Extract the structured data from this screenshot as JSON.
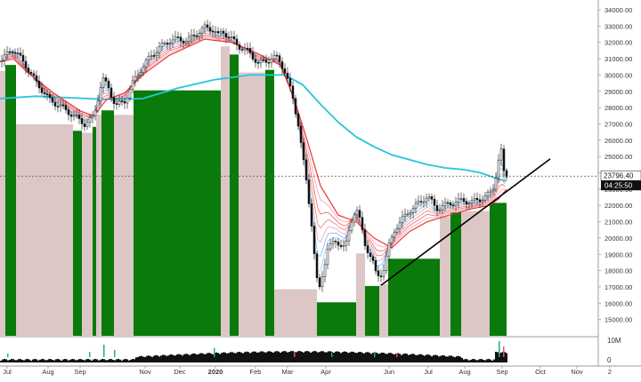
{
  "chart_data": {
    "type": "candlestick",
    "title": "",
    "xlabel": "",
    "ylabel": "",
    "ylim": [
      14000,
      34600
    ],
    "y_ticks": [
      15000,
      16000,
      17000,
      18000,
      19000,
      20000,
      21000,
      22000,
      23000,
      24000,
      25000,
      26000,
      27000,
      28000,
      29000,
      30000,
      31000,
      32000,
      33000,
      34000
    ],
    "y_tick_labels": [
      "15000.00",
      "16000.00",
      "17000.00",
      "18000.00",
      "19000.00",
      "20000.00",
      "21000.00",
      "22000.00",
      "23000.00",
      "24000.00",
      "25000.00",
      "26000.00",
      "27000.00",
      "28000.00",
      "29000.00",
      "30000.00",
      "31000.00",
      "32000.00",
      "33000.00",
      "34000.00"
    ],
    "x_tick_labels": [
      "Jul",
      "Aug",
      "Sep",
      "Nov",
      "Dec",
      "2020",
      "Feb",
      "Mar",
      "Apr",
      "Jun",
      "Jul",
      "Aug",
      "Sep",
      "Oct",
      "Nov",
      "2"
    ],
    "current_price_label": "23796.40",
    "countdown_label": "04:25:50",
    "current_price": 23796.4,
    "volume_axis_labels": [
      "10M",
      "0"
    ],
    "price_path": [
      [
        0,
        30800
      ],
      [
        10,
        31400
      ],
      [
        15,
        31600
      ],
      [
        22,
        31100
      ],
      [
        30,
        30500
      ],
      [
        40,
        29600
      ],
      [
        55,
        28500
      ],
      [
        70,
        28000
      ],
      [
        85,
        27400
      ],
      [
        95,
        27000
      ],
      [
        105,
        27400
      ],
      [
        115,
        29800
      ],
      [
        122,
        29200
      ],
      [
        130,
        28100
      ],
      [
        140,
        28400
      ],
      [
        150,
        29600
      ],
      [
        160,
        30500
      ],
      [
        170,
        31200
      ],
      [
        180,
        31700
      ],
      [
        190,
        32100
      ],
      [
        200,
        32200
      ],
      [
        210,
        32100
      ],
      [
        220,
        32500
      ],
      [
        230,
        32900
      ],
      [
        240,
        32800
      ],
      [
        245,
        32400
      ],
      [
        250,
        32700
      ],
      [
        260,
        32200
      ],
      [
        270,
        31700
      ],
      [
        280,
        31400
      ],
      [
        290,
        30700
      ],
      [
        300,
        30900
      ],
      [
        310,
        31100
      ],
      [
        315,
        30800
      ],
      [
        320,
        30200
      ],
      [
        328,
        28800
      ],
      [
        335,
        27000
      ],
      [
        340,
        25000
      ],
      [
        345,
        23100
      ],
      [
        350,
        20900
      ],
      [
        355,
        17800
      ],
      [
        358,
        16600
      ],
      [
        362,
        17700
      ],
      [
        368,
        19400
      ],
      [
        378,
        19800
      ],
      [
        388,
        19400
      ],
      [
        395,
        21100
      ],
      [
        400,
        21900
      ],
      [
        405,
        20900
      ],
      [
        410,
        19600
      ],
      [
        418,
        18700
      ],
      [
        423,
        17600
      ],
      [
        430,
        17900
      ],
      [
        437,
        19500
      ],
      [
        443,
        20500
      ],
      [
        450,
        21000
      ],
      [
        460,
        21700
      ],
      [
        470,
        22100
      ],
      [
        480,
        22600
      ],
      [
        490,
        21800
      ],
      [
        500,
        22000
      ],
      [
        510,
        22200
      ],
      [
        520,
        22300
      ],
      [
        530,
        22200
      ],
      [
        540,
        22400
      ],
      [
        550,
        22700
      ],
      [
        555,
        23200
      ],
      [
        560,
        24800
      ],
      [
        563,
        25300
      ],
      [
        566,
        24000
      ],
      [
        569,
        23796
      ]
    ],
    "series": [
      {
        "name": "",
        "color": "#26c6da",
        "points": [
          [
            0,
            28550
          ],
          [
            40,
            28700
          ],
          [
            80,
            28600
          ],
          [
            120,
            28500
          ],
          [
            160,
            28550
          ],
          [
            200,
            29200
          ],
          [
            240,
            29700
          ],
          [
            280,
            30000
          ],
          [
            320,
            30000
          ],
          [
            340,
            29400
          ],
          [
            360,
            28200
          ],
          [
            380,
            27100
          ],
          [
            400,
            26200
          ],
          [
            420,
            25600
          ],
          [
            440,
            25100
          ],
          [
            460,
            24800
          ],
          [
            480,
            24500
          ],
          [
            500,
            24300
          ],
          [
            520,
            24200
          ],
          [
            540,
            24000
          ],
          [
            560,
            23600
          ],
          [
            569,
            23500
          ]
        ]
      },
      {
        "name": "",
        "color": "#e53935",
        "points": [
          [
            0,
            30800
          ],
          [
            15,
            31000
          ],
          [
            30,
            30200
          ],
          [
            60,
            28900
          ],
          [
            90,
            27800
          ],
          [
            105,
            27500
          ],
          [
            120,
            28500
          ],
          [
            140,
            28900
          ],
          [
            160,
            30000
          ],
          [
            190,
            31200
          ],
          [
            230,
            32200
          ],
          [
            260,
            32000
          ],
          [
            290,
            31300
          ],
          [
            315,
            30600
          ],
          [
            330,
            28600
          ],
          [
            345,
            26000
          ],
          [
            360,
            23200
          ],
          [
            380,
            21400
          ],
          [
            400,
            21000
          ],
          [
            420,
            20000
          ],
          [
            440,
            19400
          ],
          [
            460,
            20400
          ],
          [
            480,
            21000
          ],
          [
            510,
            21500
          ],
          [
            530,
            21800
          ],
          [
            550,
            22000
          ],
          [
            560,
            22400
          ],
          [
            569,
            23000
          ]
        ]
      }
    ],
    "bands": [
      {
        "x0": 0,
        "x1": 6,
        "color": "#dcc6c6"
      },
      {
        "x0": 6,
        "x1": 18,
        "color": "#0a7a0a"
      },
      {
        "x0": 18,
        "x1": 82,
        "color": "#dcc6c6"
      },
      {
        "x0": 82,
        "x1": 92,
        "color": "#0a7a0a"
      },
      {
        "x0": 92,
        "x1": 104,
        "color": "#dcc6c6"
      },
      {
        "x0": 104,
        "x1": 108,
        "color": "#0a7a0a"
      },
      {
        "x0": 108,
        "x1": 114,
        "color": "#dcc6c6"
      },
      {
        "x0": 114,
        "x1": 128,
        "color": "#0a7a0a"
      },
      {
        "x0": 128,
        "x1": 150,
        "color": "#dcc6c6"
      },
      {
        "x0": 150,
        "x1": 248,
        "color": "#0a7a0a"
      },
      {
        "x0": 248,
        "x1": 258,
        "color": "#dcc6c6"
      },
      {
        "x0": 258,
        "x1": 268,
        "color": "#0a7a0a"
      },
      {
        "x0": 268,
        "x1": 298,
        "color": "#dcc6c6"
      },
      {
        "x0": 298,
        "x1": 308,
        "color": "#0a7a0a"
      },
      {
        "x0": 308,
        "x1": 356,
        "color": "#dcc6c6"
      },
      {
        "x0": 356,
        "x1": 400,
        "color": "#0a7a0a"
      },
      {
        "x0": 400,
        "x1": 410,
        "color": "#dcc6c6"
      },
      {
        "x0": 410,
        "x1": 426,
        "color": "#0a7a0a"
      },
      {
        "x0": 426,
        "x1": 436,
        "color": "#dcc6c6"
      },
      {
        "x0": 436,
        "x1": 494,
        "color": "#0a7a0a"
      },
      {
        "x0": 494,
        "x1": 506,
        "color": "#dcc6c6"
      },
      {
        "x0": 506,
        "x1": 518,
        "color": "#0a7a0a"
      },
      {
        "x0": 518,
        "x1": 550,
        "color": "#dcc6c6"
      },
      {
        "x0": 550,
        "x1": 569,
        "color": "#0a7a0a"
      }
    ],
    "trendline": {
      "from": [
        428,
        17100
      ],
      "to": [
        618,
        24850
      ],
      "color": "#000000"
    }
  }
}
